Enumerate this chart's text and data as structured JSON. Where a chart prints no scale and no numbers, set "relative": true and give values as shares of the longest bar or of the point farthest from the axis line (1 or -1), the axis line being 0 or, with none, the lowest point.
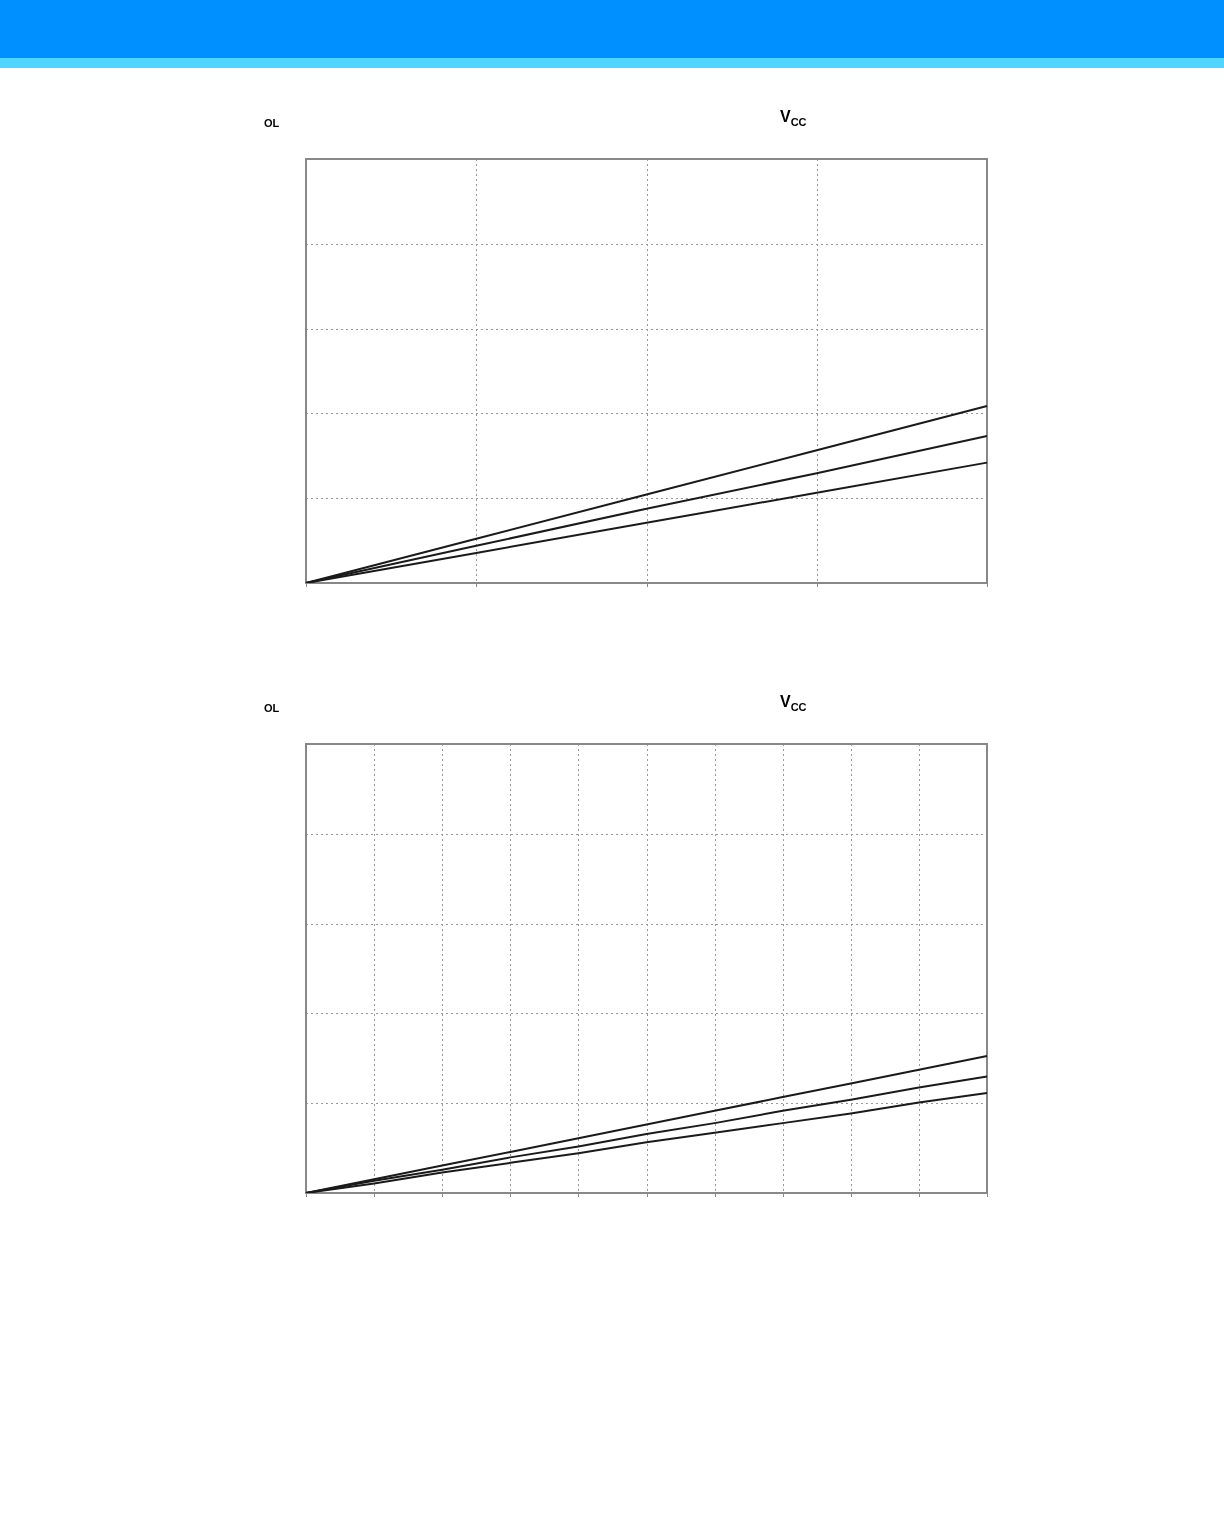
{
  "chart_data": [
    {
      "type": "line",
      "title": "V$_{CC}$",
      "annotations": [
        "OL"
      ],
      "relative": true,
      "grid": true,
      "legend": false,
      "marker": "none",
      "line_style": "solid",
      "categories": [
        null,
        null,
        null,
        null,
        null
      ],
      "series": [
        {
          "color": "#1a1a1a",
          "values": [
            0,
            0.25,
            0.5,
            0.75,
            1
          ]
        },
        {
          "color": "#1a1a1a",
          "values": [
            0,
            0.21,
            0.42,
            0.62,
            0.83
          ]
        },
        {
          "color": "#1a1a1a",
          "values": [
            0,
            0.17,
            0.34,
            0.51,
            0.68
          ]
        }
      ]
    },
    {
      "type": "line",
      "title": "V$_{CC}$",
      "annotations": [
        "OL"
      ],
      "relative": true,
      "grid": true,
      "legend": false,
      "marker": "none",
      "line_style": "solid",
      "categories": [
        null,
        null,
        null,
        null,
        null,
        null,
        null,
        null,
        null,
        null,
        null
      ],
      "series": [
        {
          "color": "#1a1a1a",
          "values": [
            0,
            0.1,
            0.2,
            0.3,
            0.4,
            0.5,
            0.6,
            0.7,
            0.8,
            0.9,
            1
          ]
        },
        {
          "color": "#1a1a1a",
          "values": [
            0,
            0.09,
            0.17,
            0.26,
            0.34,
            0.43,
            0.51,
            0.6,
            0.68,
            0.77,
            0.85
          ]
        },
        {
          "color": "#1a1a1a",
          "values": [
            0,
            0.07,
            0.15,
            0.22,
            0.29,
            0.37,
            0.44,
            0.51,
            0.58,
            0.66,
            0.73
          ]
        }
      ]
    }
  ]
}
